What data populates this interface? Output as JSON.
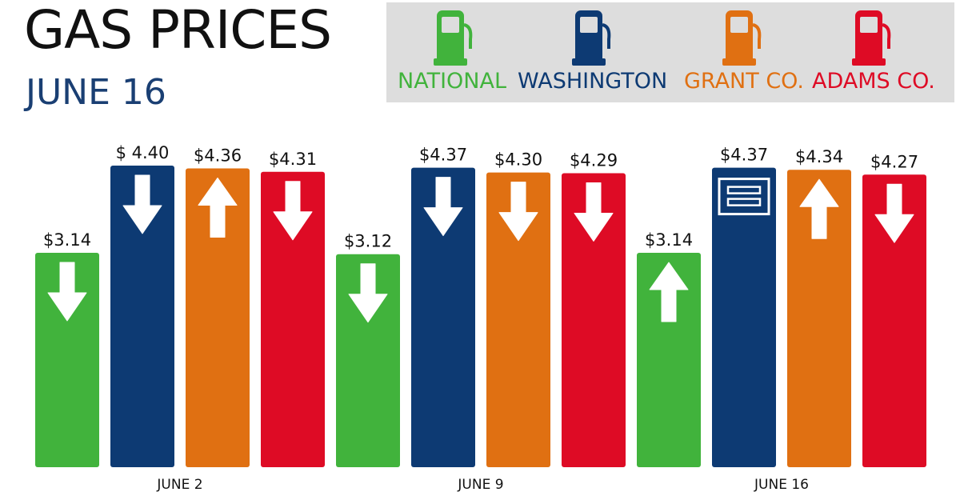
{
  "title": "GAS PRICES",
  "subtitle": "JUNE 16",
  "colors": {
    "national": "#41b33c",
    "washington": "#0d3a73",
    "grant": "#e07012",
    "adams": "#de0b25",
    "legend_bg": "#dddddd"
  },
  "legend": [
    {
      "name": "NATIONAL",
      "color": "#41b33c",
      "icon": "gas-pump-icon"
    },
    {
      "name": "WASHINGTON",
      "color": "#0d3a73",
      "icon": "gas-pump-icon"
    },
    {
      "name": "GRANT CO.",
      "color": "#e07012",
      "icon": "gas-pump-icon"
    },
    {
      "name": "ADAMS CO.",
      "color": "#de0b25",
      "icon": "gas-pump-icon"
    }
  ],
  "chart_data": {
    "type": "bar",
    "categories": [
      "JUNE 2",
      "JUNE 9",
      "JUNE 16"
    ],
    "series": [
      {
        "name": "NATIONAL",
        "values": [
          3.14,
          3.12,
          3.14
        ],
        "labels": [
          "$3.14",
          "$3.12",
          "$3.14"
        ],
        "trend": [
          "down",
          "down",
          "up"
        ]
      },
      {
        "name": "WASHINGTON",
        "values": [
          4.4,
          4.37,
          4.37
        ],
        "labels": [
          "$ 4.40",
          "$4.37",
          "$4.37"
        ],
        "trend": [
          "down",
          "down",
          "same"
        ]
      },
      {
        "name": "GRANT CO.",
        "values": [
          4.36,
          4.3,
          4.34
        ],
        "labels": [
          "$4.36",
          "$4.30",
          "$4.34"
        ],
        "trend": [
          "up",
          "down",
          "up"
        ]
      },
      {
        "name": "ADAMS CO.",
        "values": [
          4.31,
          4.29,
          4.27
        ],
        "labels": [
          "$4.31",
          "$4.29",
          "$4.27"
        ],
        "trend": [
          "down",
          "down",
          "down"
        ]
      }
    ],
    "title": "GAS PRICES",
    "subtitle": "JUNE 16",
    "xlabel": "",
    "ylabel": "",
    "grid": false,
    "legend_position": "top-right"
  }
}
